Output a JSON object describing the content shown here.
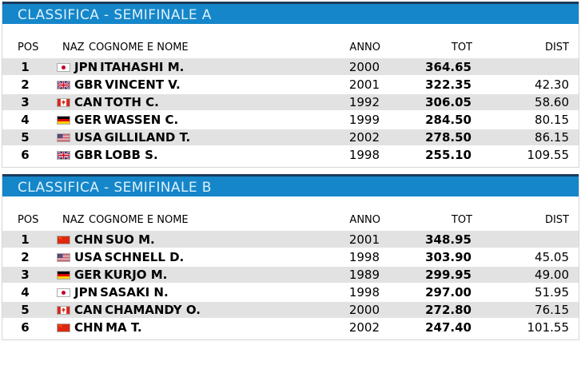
{
  "colors": {
    "title_bar_bg": "#1586c9",
    "title_bar_top": "#1a3a5c",
    "title_text": "#ddf0fb",
    "row_stripe": "#e2e2e2",
    "section_border": "#d6d6d6",
    "text": "#000000"
  },
  "columns": {
    "pos": "POS",
    "naz": "NAZ",
    "name": "COGNOME E NOME",
    "anno": "ANNO",
    "tot": "TOT",
    "dist": "DIST"
  },
  "icons": {
    "flag_note": "flag-icon codes: jpn, gbr, can, ger, usa, chn"
  },
  "tables": [
    {
      "title": "CLASSIFICA - SEMIFINALE A",
      "rows": [
        {
          "pos": "1",
          "flag": "jpn",
          "naz": "JPN",
          "name": "ITAHASHI M.",
          "anno": "2000",
          "tot": "364.65",
          "dist": ""
        },
        {
          "pos": "2",
          "flag": "gbr",
          "naz": "GBR",
          "name": "VINCENT V.",
          "anno": "2001",
          "tot": "322.35",
          "dist": "42.30"
        },
        {
          "pos": "3",
          "flag": "can",
          "naz": "CAN",
          "name": "TOTH C.",
          "anno": "1992",
          "tot": "306.05",
          "dist": "58.60"
        },
        {
          "pos": "4",
          "flag": "ger",
          "naz": "GER",
          "name": "WASSEN C.",
          "anno": "1999",
          "tot": "284.50",
          "dist": "80.15"
        },
        {
          "pos": "5",
          "flag": "usa",
          "naz": "USA",
          "name": "GILLILAND T.",
          "anno": "2002",
          "tot": "278.50",
          "dist": "86.15"
        },
        {
          "pos": "6",
          "flag": "gbr",
          "naz": "GBR",
          "name": "LOBB S.",
          "anno": "1998",
          "tot": "255.10",
          "dist": "109.55"
        }
      ]
    },
    {
      "title": "CLASSIFICA - SEMIFINALE B",
      "rows": [
        {
          "pos": "1",
          "flag": "chn",
          "naz": "CHN",
          "name": "SUO M.",
          "anno": "2001",
          "tot": "348.95",
          "dist": ""
        },
        {
          "pos": "2",
          "flag": "usa",
          "naz": "USA",
          "name": "SCHNELL D.",
          "anno": "1998",
          "tot": "303.90",
          "dist": "45.05"
        },
        {
          "pos": "3",
          "flag": "ger",
          "naz": "GER",
          "name": "KURJO M.",
          "anno": "1989",
          "tot": "299.95",
          "dist": "49.00"
        },
        {
          "pos": "4",
          "flag": "jpn",
          "naz": "JPN",
          "name": "SASAKI N.",
          "anno": "1998",
          "tot": "297.00",
          "dist": "51.95"
        },
        {
          "pos": "5",
          "flag": "can",
          "naz": "CAN",
          "name": "CHAMANDY O.",
          "anno": "2000",
          "tot": "272.80",
          "dist": "76.15"
        },
        {
          "pos": "6",
          "flag": "chn",
          "naz": "CHN",
          "name": "MA T.",
          "anno": "2002",
          "tot": "247.40",
          "dist": "101.55"
        }
      ]
    }
  ]
}
